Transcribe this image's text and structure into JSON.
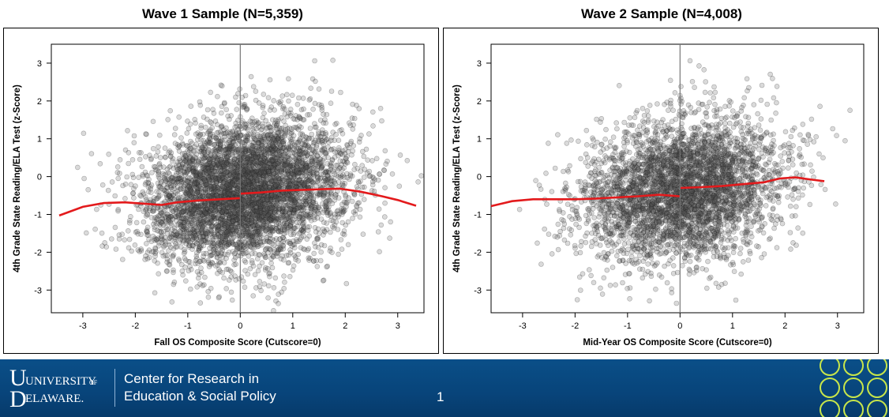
{
  "chart_data": [
    {
      "type": "scatter",
      "title": "Wave 1 Sample (N=5,359)",
      "xlabel": "Fall OS Composite Score (Cutscore=0)",
      "ylabel": "4th Grade State Reading/ELA Test (z-Score)",
      "xlim": [
        -3.6,
        3.5
      ],
      "ylim": [
        -3.6,
        3.5
      ],
      "xticks": [
        -3,
        -2,
        -1,
        0,
        1,
        2,
        3
      ],
      "yticks": [
        3,
        2,
        1,
        0,
        -1,
        -2,
        -3
      ],
      "cutscore": 0,
      "n_points": 5359,
      "point_color": "#555555",
      "point_opacity": 0.22,
      "scatter_summary": {
        "x_mean": 0.1,
        "x_sd": 0.95,
        "y_mean": -0.4,
        "y_sd": 0.95,
        "corr": 0.2
      },
      "grid": false,
      "series": [
        {
          "type": "line",
          "color": "#e31a1c",
          "x": [
            -3.45,
            -3.0,
            -2.6,
            -2.2,
            -1.8,
            -1.5,
            -1.2,
            -0.8,
            -0.4,
            -0.01,
            0.01,
            0.4,
            0.8,
            1.2,
            1.6,
            1.9,
            2.3,
            2.7,
            3.0,
            3.35
          ],
          "y": [
            -1.03,
            -0.8,
            -0.7,
            -0.68,
            -0.72,
            -0.75,
            -0.68,
            -0.63,
            -0.6,
            -0.57,
            -0.45,
            -0.42,
            -0.37,
            -0.35,
            -0.33,
            -0.32,
            -0.4,
            -0.52,
            -0.62,
            -0.77
          ]
        }
      ]
    },
    {
      "type": "scatter",
      "title": "Wave 2 Sample (N=4,008)",
      "xlabel": "Mid-Year OS Composite Score (Cutscore=0)",
      "ylabel": "4th Grade State Reading/ELA Test (z-Score)",
      "xlim": [
        -3.6,
        3.5
      ],
      "ylim": [
        -3.6,
        3.5
      ],
      "xticks": [
        -3,
        -2,
        -1,
        0,
        1,
        2,
        3
      ],
      "yticks": [
        3,
        2,
        1,
        0,
        -1,
        -2,
        -3
      ],
      "cutscore": 0,
      "n_points": 4008,
      "point_color": "#555555",
      "point_opacity": 0.22,
      "scatter_summary": {
        "x_mean": 0.05,
        "x_sd": 0.95,
        "y_mean": -0.35,
        "y_sd": 0.95,
        "corr": 0.2
      },
      "grid": false,
      "series": [
        {
          "type": "line",
          "color": "#e31a1c",
          "x": [
            -3.6,
            -3.2,
            -2.8,
            -2.4,
            -2.0,
            -1.6,
            -1.2,
            -0.8,
            -0.4,
            -0.01,
            0.01,
            0.4,
            0.8,
            1.2,
            1.6,
            1.9,
            2.2,
            2.5,
            2.75
          ],
          "y": [
            -0.78,
            -0.65,
            -0.6,
            -0.6,
            -0.6,
            -0.58,
            -0.55,
            -0.52,
            -0.48,
            -0.52,
            -0.3,
            -0.28,
            -0.25,
            -0.2,
            -0.15,
            -0.05,
            -0.02,
            -0.08,
            -0.12
          ]
        }
      ]
    }
  ],
  "footer": {
    "logo_text_top": "UNIVERSITY",
    "logo_text_of": "OF",
    "logo_text_bottom": "ELAWARE.",
    "org_line_1": "Center for Research in",
    "org_line_2": "Education & Social Policy",
    "page_number": "1",
    "colors": {
      "band": "#0a4f88",
      "deco": "#c8e64a"
    }
  }
}
